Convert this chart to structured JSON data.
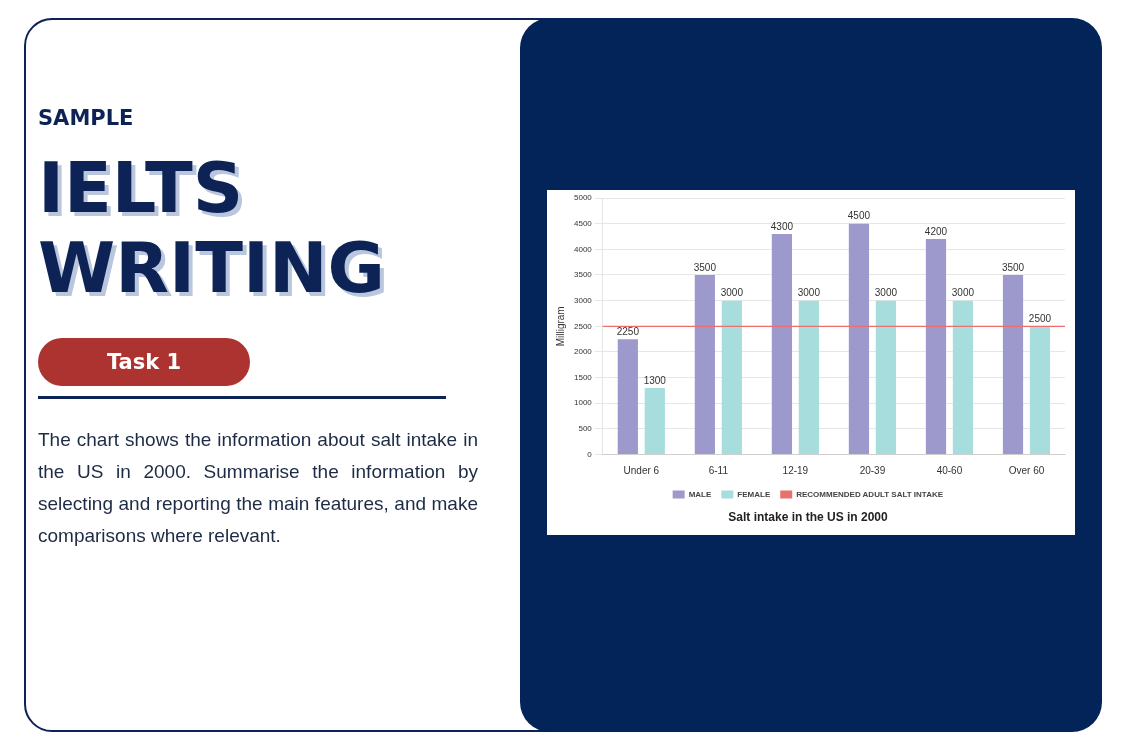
{
  "chart_data": {
    "type": "bar",
    "title": "Salt intake in the US in 2000",
    "ylabel": "Milligram",
    "categories": [
      "Under 6",
      "6-11",
      "12-19",
      "20-39",
      "40-60",
      "Over 60"
    ],
    "series": [
      {
        "name": "MALE",
        "color": "#9d99cc",
        "values": [
          2250,
          3500,
          4300,
          4500,
          4200,
          3500
        ]
      },
      {
        "name": "FEMALE",
        "color": "#a7dedd",
        "values": [
          1300,
          3000,
          3000,
          3000,
          3000,
          2500
        ]
      }
    ],
    "ylim": [
      0,
      5000
    ],
    "yticks": [
      0,
      500,
      1000,
      1500,
      2000,
      2500,
      3000,
      3500,
      4000,
      4500,
      5000
    ],
    "grid": "y",
    "legend": "bottom",
    "data_labels": true,
    "ref_lines": [
      {
        "axis": "y",
        "value": 2500,
        "label": "RECOMMENDED ADULT SALT INTAKE",
        "color": "#e8716f"
      }
    ],
    "annotations": [
      "SAMPLE",
      "IELTS WRITING",
      "Task 1",
      "The chart shows the information about salt intake in the US in 2000. Summarise the information by selecting and reporting the main features, and make comparisons where relevant."
    ]
  }
}
